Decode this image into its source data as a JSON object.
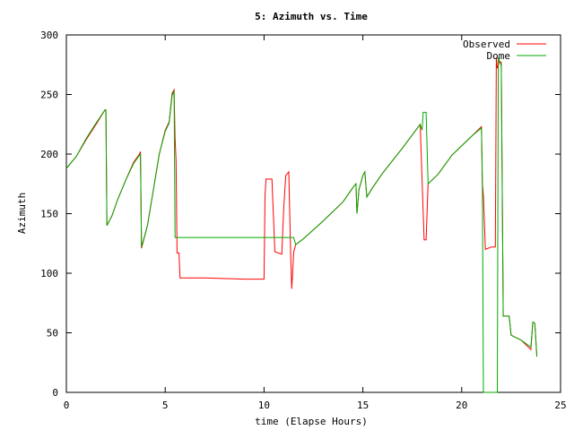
{
  "chart_data": {
    "type": "line",
    "title": "5: Azimuth vs. Time",
    "xlabel": "time (Elapse Hours)",
    "ylabel": "Azimuth",
    "xlim": [
      0,
      25
    ],
    "ylim": [
      0,
      300
    ],
    "xticks": [
      0,
      5,
      10,
      15,
      20,
      25
    ],
    "yticks": [
      0,
      50,
      100,
      150,
      200,
      250,
      300
    ],
    "grid": false,
    "legend_position": "top-right",
    "series": [
      {
        "name": "Observed",
        "color": "#ff0000",
        "points": [
          [
            0.0,
            188
          ],
          [
            0.5,
            198
          ],
          [
            1.0,
            212
          ],
          [
            1.5,
            225
          ],
          [
            1.95,
            237
          ],
          [
            2.0,
            237
          ],
          [
            2.05,
            140
          ],
          [
            2.3,
            148
          ],
          [
            2.6,
            162
          ],
          [
            3.0,
            178
          ],
          [
            3.4,
            193
          ],
          [
            3.7,
            200
          ],
          [
            3.75,
            202
          ],
          [
            3.8,
            121
          ],
          [
            4.1,
            140
          ],
          [
            4.4,
            170
          ],
          [
            4.7,
            200
          ],
          [
            5.0,
            220
          ],
          [
            5.2,
            227
          ],
          [
            5.35,
            251
          ],
          [
            5.45,
            254
          ],
          [
            5.5,
            213
          ],
          [
            5.55,
            195
          ],
          [
            5.6,
            117
          ],
          [
            5.7,
            117
          ],
          [
            5.75,
            96
          ],
          [
            7.0,
            96
          ],
          [
            9.0,
            95
          ],
          [
            10.0,
            95
          ],
          [
            10.05,
            165
          ],
          [
            10.1,
            179
          ],
          [
            10.4,
            179
          ],
          [
            10.55,
            118
          ],
          [
            10.9,
            116
          ],
          [
            11.0,
            155
          ],
          [
            11.1,
            182
          ],
          [
            11.25,
            185
          ],
          [
            11.35,
            112
          ],
          [
            11.4,
            87
          ],
          [
            11.5,
            118
          ],
          [
            11.6,
            124
          ],
          [
            12.0,
            129
          ],
          [
            13.0,
            144
          ],
          [
            14.0,
            160
          ],
          [
            14.5,
            172
          ],
          [
            14.65,
            175
          ],
          [
            14.7,
            150
          ],
          [
            14.8,
            170
          ],
          [
            15.0,
            182
          ],
          [
            15.1,
            185
          ],
          [
            15.2,
            164
          ],
          [
            15.5,
            172
          ],
          [
            16.0,
            184
          ],
          [
            17.0,
            205
          ],
          [
            17.9,
            225
          ],
          [
            18.1,
            128
          ],
          [
            18.2,
            128
          ],
          [
            18.3,
            175
          ],
          [
            18.8,
            183
          ],
          [
            19.5,
            199
          ],
          [
            20.5,
            215
          ],
          [
            21.0,
            223
          ],
          [
            21.05,
            175
          ],
          [
            21.1,
            165
          ],
          [
            21.2,
            120
          ],
          [
            21.5,
            122
          ],
          [
            21.7,
            122
          ],
          [
            21.75,
            281
          ],
          [
            21.8,
            272
          ],
          [
            21.9,
            278
          ],
          [
            22.0,
            277
          ],
          [
            22.1,
            64
          ],
          [
            22.4,
            64
          ],
          [
            22.5,
            48
          ],
          [
            23.0,
            44
          ],
          [
            23.5,
            36
          ],
          [
            23.6,
            59
          ],
          [
            23.7,
            58
          ],
          [
            23.8,
            30
          ]
        ]
      },
      {
        "name": "Dome",
        "color": "#00aa00",
        "points": [
          [
            0.0,
            188
          ],
          [
            0.5,
            198
          ],
          [
            1.0,
            213
          ],
          [
            1.5,
            226
          ],
          [
            1.95,
            237
          ],
          [
            2.0,
            237
          ],
          [
            2.05,
            140
          ],
          [
            2.3,
            148
          ],
          [
            2.6,
            162
          ],
          [
            3.0,
            178
          ],
          [
            3.4,
            192
          ],
          [
            3.7,
            199
          ],
          [
            3.75,
            200
          ],
          [
            3.8,
            122
          ],
          [
            4.1,
            140
          ],
          [
            4.4,
            170
          ],
          [
            4.7,
            200
          ],
          [
            5.0,
            219
          ],
          [
            5.2,
            226
          ],
          [
            5.35,
            249
          ],
          [
            5.45,
            253
          ],
          [
            5.5,
            130
          ],
          [
            10.0,
            130
          ],
          [
            11.0,
            130
          ],
          [
            11.5,
            130
          ],
          [
            11.6,
            124
          ],
          [
            12.0,
            129
          ],
          [
            13.0,
            144
          ],
          [
            14.0,
            160
          ],
          [
            14.5,
            172
          ],
          [
            14.65,
            175
          ],
          [
            14.7,
            150
          ],
          [
            14.8,
            170
          ],
          [
            15.0,
            182
          ],
          [
            15.1,
            185
          ],
          [
            15.2,
            164
          ],
          [
            15.5,
            172
          ],
          [
            16.0,
            184
          ],
          [
            17.0,
            205
          ],
          [
            17.9,
            225
          ],
          [
            18.0,
            220
          ],
          [
            18.05,
            235
          ],
          [
            18.2,
            235
          ],
          [
            18.3,
            175
          ],
          [
            18.8,
            183
          ],
          [
            19.5,
            199
          ],
          [
            20.5,
            215
          ],
          [
            21.0,
            222
          ],
          [
            21.05,
            170
          ],
          [
            21.1,
            0
          ],
          [
            21.8,
            0
          ],
          [
            21.85,
            281
          ],
          [
            22.0,
            274
          ],
          [
            22.1,
            64
          ],
          [
            22.4,
            64
          ],
          [
            22.5,
            48
          ],
          [
            23.0,
            44
          ],
          [
            23.5,
            38
          ],
          [
            23.6,
            59
          ],
          [
            23.7,
            58
          ],
          [
            23.8,
            30
          ]
        ]
      }
    ]
  }
}
